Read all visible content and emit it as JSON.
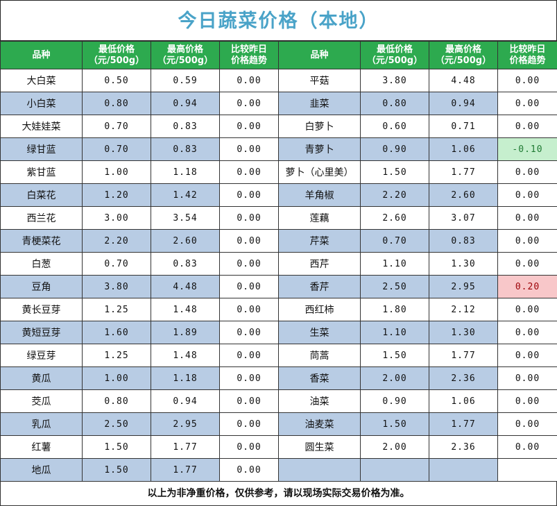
{
  "title": "今日蔬菜价格（本地）",
  "headers": {
    "variety": "品种",
    "low_l1": "最低价格",
    "low_l2": "（元/500g）",
    "high_l1": "最高价格",
    "high_l2": "（元/500g）",
    "trend_l1": "比较昨日",
    "trend_l2": "价格趋势"
  },
  "left_rows": [
    {
      "name": "大白菜",
      "low": "0.50",
      "high": "0.59",
      "trend": "0.00"
    },
    {
      "name": "小白菜",
      "low": "0.80",
      "high": "0.94",
      "trend": "0.00"
    },
    {
      "name": "大娃娃菜",
      "low": "0.70",
      "high": "0.83",
      "trend": "0.00"
    },
    {
      "name": "绿甘蓝",
      "low": "0.70",
      "high": "0.83",
      "trend": "0.00"
    },
    {
      "name": "紫甘蓝",
      "low": "1.00",
      "high": "1.18",
      "trend": "0.00"
    },
    {
      "name": "白菜花",
      "low": "1.20",
      "high": "1.42",
      "trend": "0.00"
    },
    {
      "name": "西兰花",
      "low": "3.00",
      "high": "3.54",
      "trend": "0.00"
    },
    {
      "name": "青梗菜花",
      "low": "2.20",
      "high": "2.60",
      "trend": "0.00"
    },
    {
      "name": "白葱",
      "low": "0.70",
      "high": "0.83",
      "trend": "0.00"
    },
    {
      "name": "豆角",
      "low": "3.80",
      "high": "4.48",
      "trend": "0.00"
    },
    {
      "name": "黄长豆芽",
      "low": "1.25",
      "high": "1.48",
      "trend": "0.00"
    },
    {
      "name": "黄短豆芽",
      "low": "1.60",
      "high": "1.89",
      "trend": "0.00"
    },
    {
      "name": "绿豆芽",
      "low": "1.25",
      "high": "1.48",
      "trend": "0.00"
    },
    {
      "name": "黄瓜",
      "low": "1.00",
      "high": "1.18",
      "trend": "0.00"
    },
    {
      "name": "茭瓜",
      "low": "0.80",
      "high": "0.94",
      "trend": "0.00"
    },
    {
      "name": "乳瓜",
      "low": "2.50",
      "high": "2.95",
      "trend": "0.00"
    },
    {
      "name": "红薯",
      "low": "1.50",
      "high": "1.77",
      "trend": "0.00"
    },
    {
      "name": "地瓜",
      "low": "1.50",
      "high": "1.77",
      "trend": "0.00"
    }
  ],
  "right_rows": [
    {
      "name": "平菇",
      "low": "3.80",
      "high": "4.48",
      "trend": "0.00"
    },
    {
      "name": "韭菜",
      "low": "0.80",
      "high": "0.94",
      "trend": "0.00"
    },
    {
      "name": "白萝卜",
      "low": "0.60",
      "high": "0.71",
      "trend": "0.00"
    },
    {
      "name": "青萝卜",
      "low": "0.90",
      "high": "1.06",
      "trend": "-0.10",
      "status": "down"
    },
    {
      "name": "萝卜（心里美）",
      "low": "1.50",
      "high": "1.77",
      "trend": "0.00"
    },
    {
      "name": "羊角椒",
      "low": "2.20",
      "high": "2.60",
      "trend": "0.00"
    },
    {
      "name": "莲藕",
      "low": "2.60",
      "high": "3.07",
      "trend": "0.00"
    },
    {
      "name": "芹菜",
      "low": "0.70",
      "high": "0.83",
      "trend": "0.00"
    },
    {
      "name": "西芹",
      "low": "1.10",
      "high": "1.30",
      "trend": "0.00"
    },
    {
      "name": "香芹",
      "low": "2.50",
      "high": "2.95",
      "trend": "0.20",
      "status": "up"
    },
    {
      "name": "西红柿",
      "low": "1.80",
      "high": "2.12",
      "trend": "0.00"
    },
    {
      "name": "生菜",
      "low": "1.10",
      "high": "1.30",
      "trend": "0.00"
    },
    {
      "name": "茼蒿",
      "low": "1.50",
      "high": "1.77",
      "trend": "0.00"
    },
    {
      "name": "香菜",
      "low": "2.00",
      "high": "2.36",
      "trend": "0.00"
    },
    {
      "name": "油菜",
      "low": "0.90",
      "high": "1.06",
      "trend": "0.00"
    },
    {
      "name": "油麦菜",
      "low": "1.50",
      "high": "1.77",
      "trend": "0.00"
    },
    {
      "name": "圆生菜",
      "low": "2.00",
      "high": "2.36",
      "trend": "0.00"
    },
    {
      "name": "",
      "low": "",
      "high": "",
      "trend": ""
    }
  ],
  "footer": "以上为非净重价格，仅供参考，请以现场实际交易价格为准。",
  "colors": {
    "title": "#4aa3c8",
    "header_bg": "#2daa4f",
    "row_shade": "#b8cce4",
    "trend_down_bg": "#c6efce",
    "trend_up_bg": "#f8c7c9"
  }
}
